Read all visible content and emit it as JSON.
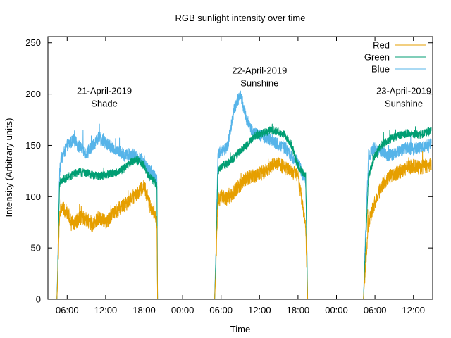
{
  "chart_data": {
    "type": "line",
    "title": "RGB sunlight intensity over time",
    "xlabel": "Time",
    "ylabel": "Intensity (Arbitrary units)",
    "ylim": [
      0,
      256
    ],
    "xlim_hours": [
      3,
      63
    ],
    "y_ticks": [
      0,
      50,
      100,
      150,
      200,
      250
    ],
    "x_ticks": [
      {
        "hour": 6,
        "label": "06:00"
      },
      {
        "hour": 12,
        "label": "12:00"
      },
      {
        "hour": 18,
        "label": "18:00"
      },
      {
        "hour": 24,
        "label": "00:00"
      },
      {
        "hour": 30,
        "label": "06:00"
      },
      {
        "hour": 36,
        "label": "12:00"
      },
      {
        "hour": 42,
        "label": "18:00"
      },
      {
        "hour": 48,
        "label": "00:00"
      },
      {
        "hour": 54,
        "label": "06:00"
      },
      {
        "hour": 60,
        "label": "12:00"
      }
    ],
    "legend_position": "top-right",
    "annotations": [
      {
        "lines": [
          "21-April-2019",
          "Shade"
        ],
        "hour": 11.8,
        "value": 200
      },
      {
        "lines": [
          "22-April-2019",
          "Sunshine"
        ],
        "hour": 36,
        "value": 220
      },
      {
        "lines": [
          "23-April-2019",
          "Sunshine"
        ],
        "hour": 58.5,
        "value": 200
      }
    ],
    "series": [
      {
        "name": "Red",
        "color": "#e69f00",
        "points": [
          [
            4.2,
            0
          ],
          [
            4.4,
            0
          ],
          [
            4.5,
            15
          ],
          [
            4.8,
            80
          ],
          [
            5.0,
            90
          ],
          [
            6.0,
            85
          ],
          [
            7.0,
            72
          ],
          [
            8.0,
            80
          ],
          [
            9.0,
            78
          ],
          [
            10.0,
            72
          ],
          [
            11.0,
            80
          ],
          [
            12.0,
            75
          ],
          [
            13.0,
            82
          ],
          [
            14.0,
            88
          ],
          [
            15.0,
            92
          ],
          [
            16.0,
            98
          ],
          [
            17.0,
            104
          ],
          [
            18.0,
            110
          ],
          [
            18.5,
            100
          ],
          [
            19.0,
            90
          ],
          [
            19.6,
            85
          ],
          [
            20.0,
            75
          ],
          [
            20.1,
            0
          ],
          [
            28.5,
            0
          ],
          [
            29.0,
            0
          ],
          [
            29.2,
            30
          ],
          [
            29.5,
            95
          ],
          [
            30.0,
            100
          ],
          [
            31.0,
            98
          ],
          [
            32.0,
            104
          ],
          [
            33.0,
            112
          ],
          [
            34.0,
            118
          ],
          [
            35.0,
            120
          ],
          [
            36.0,
            122
          ],
          [
            37.0,
            125
          ],
          [
            38.0,
            130
          ],
          [
            39.0,
            132
          ],
          [
            40.0,
            128
          ],
          [
            41.0,
            125
          ],
          [
            42.0,
            120
          ],
          [
            42.5,
            100
          ],
          [
            43.2,
            70
          ],
          [
            43.5,
            0
          ],
          [
            52.0,
            0
          ],
          [
            52.2,
            0
          ],
          [
            52.4,
            20
          ],
          [
            53.0,
            75
          ],
          [
            54.0,
            95
          ],
          [
            55.0,
            110
          ],
          [
            56.0,
            118
          ],
          [
            57.0,
            122
          ],
          [
            58.0,
            125
          ],
          [
            59.0,
            128
          ],
          [
            60.0,
            130
          ],
          [
            61.0,
            128
          ],
          [
            62.0,
            130
          ],
          [
            62.8,
            132
          ]
        ]
      },
      {
        "name": "Green",
        "color": "#009e73",
        "points": [
          [
            4.2,
            0
          ],
          [
            4.4,
            0
          ],
          [
            4.5,
            20
          ],
          [
            4.8,
            110
          ],
          [
            5.0,
            116
          ],
          [
            6.0,
            118
          ],
          [
            7.0,
            122
          ],
          [
            8.0,
            124
          ],
          [
            9.0,
            123
          ],
          [
            10.0,
            121
          ],
          [
            11.0,
            120
          ],
          [
            12.0,
            121
          ],
          [
            13.0,
            123
          ],
          [
            14.0,
            124
          ],
          [
            15.0,
            128
          ],
          [
            16.0,
            134
          ],
          [
            17.0,
            136
          ],
          [
            18.0,
            130
          ],
          [
            18.5,
            122
          ],
          [
            19.0,
            118
          ],
          [
            19.6,
            115
          ],
          [
            20.0,
            110
          ],
          [
            20.1,
            0
          ],
          [
            28.5,
            0
          ],
          [
            29.0,
            0
          ],
          [
            29.2,
            40
          ],
          [
            29.5,
            125
          ],
          [
            30.0,
            130
          ],
          [
            31.0,
            132
          ],
          [
            32.0,
            138
          ],
          [
            33.0,
            145
          ],
          [
            34.0,
            150
          ],
          [
            35.0,
            158
          ],
          [
            36.0,
            160
          ],
          [
            37.0,
            163
          ],
          [
            38.0,
            165
          ],
          [
            39.0,
            163
          ],
          [
            40.0,
            160
          ],
          [
            41.0,
            150
          ],
          [
            42.0,
            130
          ],
          [
            42.5,
            125
          ],
          [
            43.2,
            120
          ],
          [
            43.5,
            0
          ],
          [
            52.0,
            0
          ],
          [
            52.2,
            0
          ],
          [
            52.4,
            30
          ],
          [
            53.0,
            120
          ],
          [
            54.0,
            140
          ],
          [
            55.0,
            150
          ],
          [
            56.0,
            155
          ],
          [
            57.0,
            158
          ],
          [
            58.0,
            160
          ],
          [
            59.0,
            162
          ],
          [
            60.0,
            161
          ],
          [
            61.0,
            160
          ],
          [
            62.0,
            163
          ],
          [
            62.8,
            165
          ]
        ]
      },
      {
        "name": "Blue",
        "color": "#56b4e9",
        "points": [
          [
            4.2,
            0
          ],
          [
            4.4,
            0
          ],
          [
            4.5,
            25
          ],
          [
            4.8,
            120
          ],
          [
            5.0,
            135
          ],
          [
            6.0,
            150
          ],
          [
            7.0,
            155
          ],
          [
            8.0,
            148
          ],
          [
            9.0,
            142
          ],
          [
            10.0,
            150
          ],
          [
            11.0,
            158
          ],
          [
            12.0,
            152
          ],
          [
            13.0,
            148
          ],
          [
            14.0,
            145
          ],
          [
            15.0,
            140
          ],
          [
            16.0,
            142
          ],
          [
            17.0,
            138
          ],
          [
            18.0,
            135
          ],
          [
            18.5,
            128
          ],
          [
            19.0,
            125
          ],
          [
            19.6,
            120
          ],
          [
            20.0,
            115
          ],
          [
            20.1,
            0
          ],
          [
            28.5,
            0
          ],
          [
            29.0,
            0
          ],
          [
            29.2,
            50
          ],
          [
            29.5,
            140
          ],
          [
            30.0,
            145
          ],
          [
            31.0,
            148
          ],
          [
            32.0,
            185
          ],
          [
            33.0,
            200
          ],
          [
            34.0,
            175
          ],
          [
            35.0,
            162
          ],
          [
            36.0,
            160
          ],
          [
            37.0,
            158
          ],
          [
            38.0,
            155
          ],
          [
            39.0,
            150
          ],
          [
            40.0,
            148
          ],
          [
            41.0,
            138
          ],
          [
            42.0,
            135
          ],
          [
            42.5,
            125
          ],
          [
            43.2,
            115
          ],
          [
            43.5,
            0
          ],
          [
            52.0,
            0
          ],
          [
            52.2,
            0
          ],
          [
            52.4,
            40
          ],
          [
            53.0,
            140
          ],
          [
            54.0,
            148
          ],
          [
            55.0,
            145
          ],
          [
            56.0,
            140
          ],
          [
            57.0,
            142
          ],
          [
            58.0,
            145
          ],
          [
            59.0,
            148
          ],
          [
            60.0,
            146
          ],
          [
            61.0,
            148
          ],
          [
            62.0,
            150
          ],
          [
            62.8,
            152
          ]
        ]
      }
    ]
  }
}
